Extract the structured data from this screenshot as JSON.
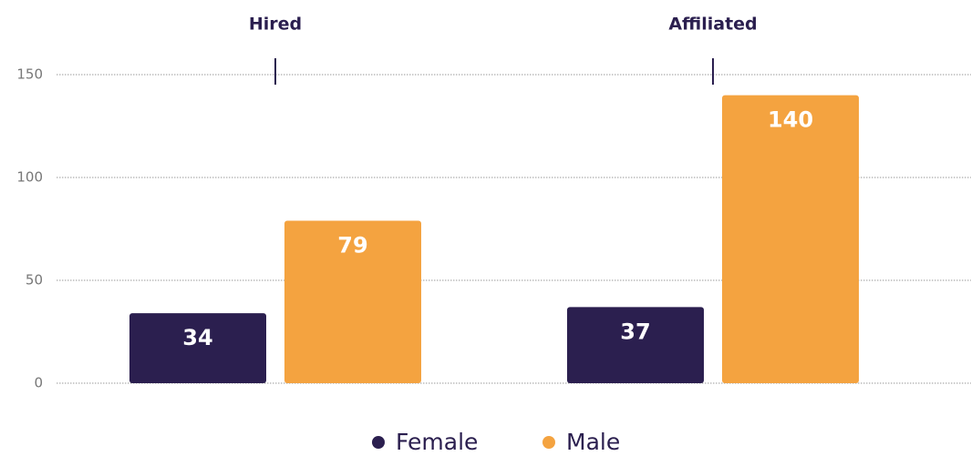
{
  "chart_data": {
    "type": "bar",
    "categories": [
      "Hired",
      "Affiliated"
    ],
    "series": [
      {
        "name": "Female",
        "color": "#2b1f4f",
        "values": [
          34,
          37
        ]
      },
      {
        "name": "Male",
        "color": "#f4a340",
        "values": [
          79,
          140
        ]
      }
    ],
    "ylim": [
      0,
      150
    ],
    "yticks": [
      0,
      50,
      100,
      150
    ],
    "grid": true,
    "legend": "bottom"
  }
}
